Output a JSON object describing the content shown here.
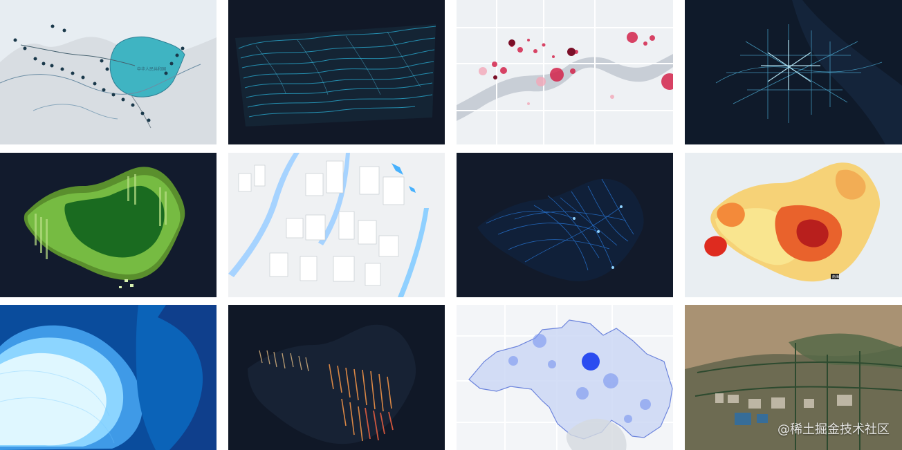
{
  "tiles": [
    {
      "id": "silk-road-map",
      "label": "中华人民共和国",
      "bg": "#e8eef2",
      "accent": "#3fb4c2"
    },
    {
      "id": "terrain-contour-3d",
      "bg": "#111827",
      "accent": "#2bbbe8"
    },
    {
      "id": "bubble-point-map",
      "bg": "#eef1f4",
      "accent": "#cf2a4f"
    },
    {
      "id": "road-network-map",
      "bg": "#0f1a2a",
      "accent": "#72d8ff"
    },
    {
      "id": "china-3d-columns",
      "bg": "#121b2d",
      "accent": "#3b9d36"
    },
    {
      "id": "city-buildings-3d",
      "bg": "#f0f2f4",
      "accent": "#9fd0ff"
    },
    {
      "id": "flight-lines-map",
      "bg": "#121a2a",
      "accent": "#1f73ff"
    },
    {
      "id": "choropleth-china",
      "bg": "#e9eef2",
      "accent": "#e8542f",
      "badge": "南海"
    },
    {
      "id": "elevation-blue-map",
      "bg": "#0b4b9b",
      "accent": "#9ad9ff"
    },
    {
      "id": "vertical-bars-map",
      "bg": "#101827",
      "accent": "#f08a3a"
    },
    {
      "id": "district-bubble-map",
      "bg": "#f3f5f8",
      "accent": "#2b4cf0"
    },
    {
      "id": "satellite-map",
      "bg": "#8b7a62",
      "accent": "#2d4a2f"
    }
  ],
  "watermark": "@稀土掘金技术社区"
}
